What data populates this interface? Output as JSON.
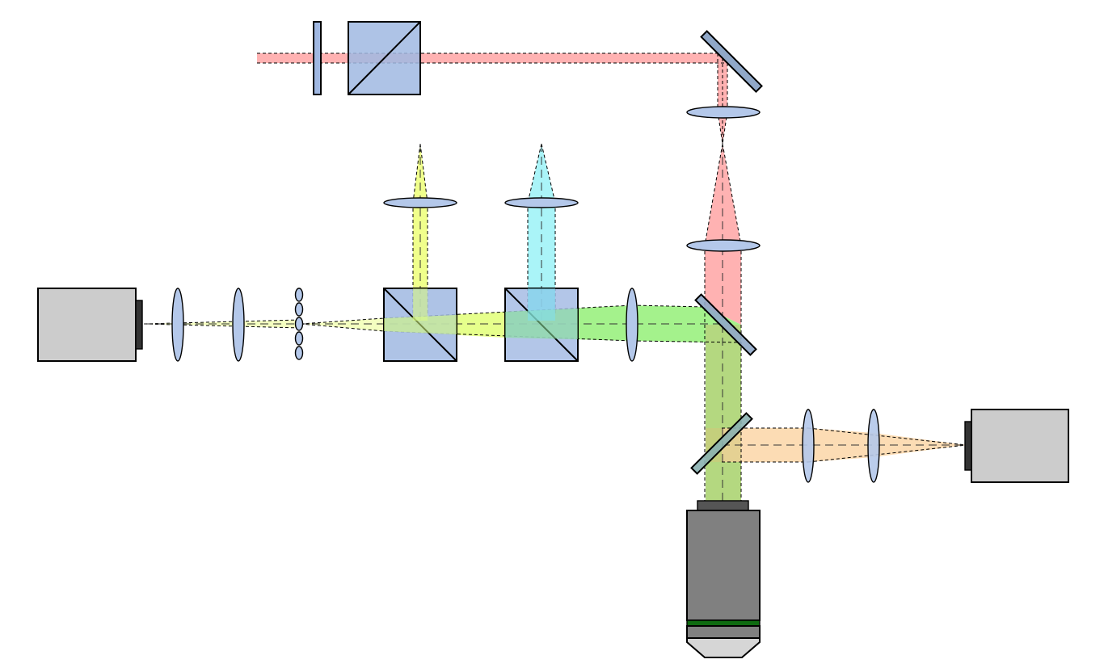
{
  "colors": {
    "background": "#ffffff",
    "optic_blue": "#a0b8e2",
    "lens_blue": "#b4c8ea",
    "camera_gray": "#cccccc",
    "objective_gray": "#808080",
    "objective_ring_green": "#0e6b10",
    "beam_red": "#ffb2b2",
    "beam_yellow": "#f0ff8c",
    "beam_cyan": "#aaf4f8",
    "beam_green": "#a4f28c",
    "beam_olive": "#b4d880",
    "beam_orange": "#fcdcb4"
  },
  "components": {
    "cameras": [
      "camera-body-left",
      "camera-body-right"
    ],
    "objective": "microscope-objective",
    "beam_splitter_cubes": 3,
    "mirrors": 3,
    "lenses": 9,
    "lenslet_array": "microlens-array"
  }
}
